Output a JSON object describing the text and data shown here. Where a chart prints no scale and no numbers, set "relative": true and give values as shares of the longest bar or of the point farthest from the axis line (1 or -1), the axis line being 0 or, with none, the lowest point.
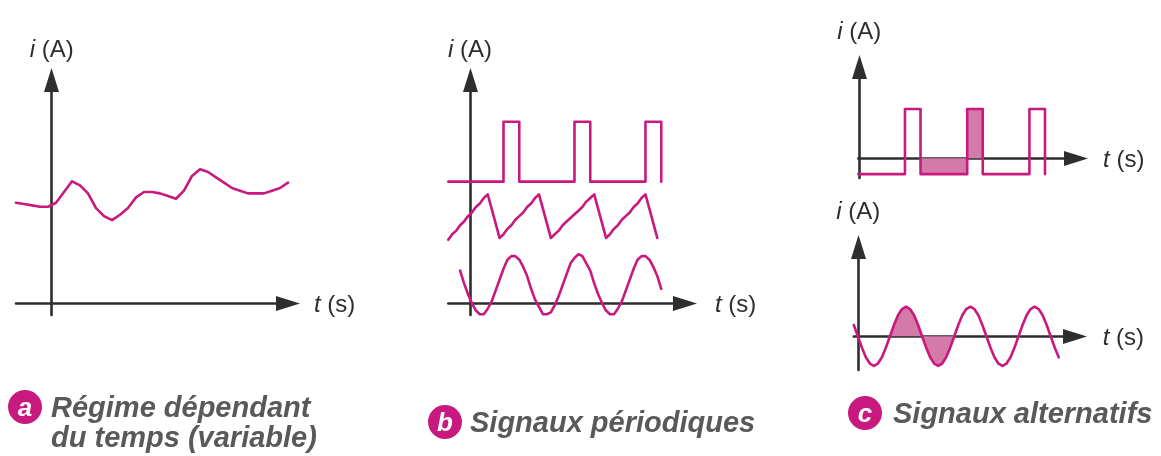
{
  "chart_data": [
    {
      "type": "line",
      "title": "Régime dépendant du temps (variable)",
      "annotations": [
        "a"
      ],
      "xlabel": "t (s)",
      "ylabel": "i (A)",
      "relative": true,
      "color": "#c8197f",
      "categories": [
        null,
        null,
        null,
        null,
        null,
        null,
        null,
        null,
        null,
        null,
        null,
        null,
        null,
        null,
        null,
        null,
        null,
        null,
        null,
        null,
        null,
        null,
        null,
        null,
        null,
        null,
        null,
        null,
        null,
        null,
        null,
        null,
        null,
        null,
        null
      ],
      "values": [
        0.75,
        0.74,
        0.73,
        0.72,
        0.72,
        0.75,
        0.83,
        0.91,
        0.88,
        0.82,
        0.71,
        0.65,
        0.62,
        0.66,
        0.71,
        0.79,
        0.83,
        0.83,
        0.82,
        0.8,
        0.78,
        0.84,
        0.95,
        1,
        0.98,
        0.94,
        0.9,
        0.86,
        0.84,
        0.82,
        0.82,
        0.82,
        0.84,
        0.86,
        0.9
      ]
    },
    {
      "type": "line",
      "title": "Signaux périodiques",
      "annotations": [
        "b"
      ],
      "xlabel": "t (s)",
      "ylabel": "i (A)",
      "relative": true,
      "categories": [
        null,
        null,
        null,
        null,
        null,
        null,
        null,
        null,
        null,
        null,
        null,
        null,
        null,
        null,
        null,
        null,
        null,
        null,
        null,
        null,
        null,
        null,
        null,
        null,
        null,
        null,
        null,
        null,
        null,
        null,
        null,
        null,
        null,
        null,
        null,
        null,
        null,
        null,
        null,
        null,
        null,
        null,
        null,
        null,
        null,
        null,
        null,
        null,
        null,
        null,
        null,
        null,
        null,
        null,
        null,
        null,
        null,
        null,
        null,
        null,
        null
      ],
      "series": [
        {
          "type": "step",
          "color": "#c8197f",
          "values": [
            0.67,
            0.67,
            0.67,
            0.67,
            0.67,
            0.67,
            0.67,
            0.67,
            0.67,
            0.67,
            0.67,
            0.67,
            0.67,
            0.67,
            1,
            1,
            1,
            1,
            0.67,
            0.67,
            0.67,
            0.67,
            0.67,
            0.67,
            0.67,
            0.67,
            0.67,
            0.67,
            0.67,
            0.67,
            0.67,
            0.67,
            1,
            1,
            1,
            1,
            0.67,
            0.67,
            0.67,
            0.67,
            0.67,
            0.67,
            0.67,
            0.67,
            0.67,
            0.67,
            0.67,
            0.67,
            0.67,
            0.67,
            1,
            1,
            1,
            1,
            0.67,
            null,
            null,
            null,
            null,
            null,
            null
          ]
        },
        {
          "color": "#c8197f",
          "values": [
            0.35,
            0.38,
            0.4,
            0.43,
            0.45,
            0.48,
            0.5,
            0.53,
            0.55,
            0.58,
            0.6,
            0.52,
            0.44,
            0.36,
            0.38,
            0.41,
            0.43,
            0.46,
            0.48,
            0.5,
            0.53,
            0.55,
            0.58,
            0.6,
            0.52,
            0.44,
            0.36,
            0.38,
            0.4,
            0.43,
            0.45,
            0.47,
            0.49,
            0.51,
            0.53,
            0.56,
            0.58,
            0.6,
            0.52,
            0.44,
            0.36,
            0.38,
            0.41,
            0.43,
            0.46,
            0.48,
            0.5,
            0.53,
            0.55,
            0.58,
            0.6,
            0.52,
            0.44,
            0.36,
            null,
            null,
            null,
            null,
            null,
            null,
            null
          ]
        },
        {
          "color": "#c8197f",
          "values": [
            null,
            null,
            null,
            0.18,
            0.11,
            0.05,
            0,
            -0.04,
            -0.06,
            -0.06,
            -0.03,
            0.01,
            0.07,
            0.13,
            0.19,
            0.24,
            0.26,
            0.26,
            0.24,
            0.2,
            0.15,
            0.08,
            0.02,
            -0.02,
            -0.06,
            -0.06,
            -0.05,
            -0.01,
            0.04,
            0.1,
            0.16,
            0.22,
            0.25,
            0.27,
            0.26,
            0.22,
            0.18,
            0.11,
            0.05,
            0,
            -0.04,
            -0.06,
            -0.06,
            -0.03,
            0.01,
            0.07,
            0.13,
            0.19,
            0.24,
            0.26,
            0.26,
            0.24,
            0.2,
            0.15,
            0.08,
            null,
            null,
            null,
            null,
            null,
            null
          ]
        }
      ]
    },
    {
      "type": "step",
      "xlabel": "t (s)",
      "ylabel": "i (A)",
      "relative": true,
      "categories": [
        null,
        null,
        null,
        null,
        null,
        null,
        null,
        null,
        null,
        null,
        null,
        null,
        null,
        null,
        null,
        null,
        null,
        null,
        null,
        null,
        null,
        null,
        null,
        null,
        null,
        null,
        null,
        null,
        null,
        null,
        null,
        null,
        null,
        null,
        null,
        null,
        null,
        null,
        null,
        null,
        null,
        null,
        null,
        null,
        null,
        null,
        null,
        null,
        null,
        null,
        null,
        null,
        null,
        null,
        null,
        null,
        null
      ],
      "series": [
        {
          "color": "#c8197f",
          "values": [
            -0.32,
            -0.32,
            -0.32,
            -0.32,
            -0.32,
            -0.32,
            -0.32,
            -0.32,
            -0.32,
            -0.32,
            -0.32,
            -0.32,
            1,
            1,
            1,
            1,
            -0.32,
            -0.32,
            -0.32,
            -0.32,
            -0.32,
            -0.32,
            -0.32,
            -0.32,
            -0.32,
            -0.32,
            -0.32,
            -0.32,
            1,
            1,
            1,
            1,
            -0.32,
            -0.32,
            -0.32,
            -0.32,
            -0.32,
            -0.32,
            -0.32,
            -0.32,
            -0.32,
            -0.32,
            -0.32,
            -0.32,
            1,
            1,
            1,
            1,
            -0.32,
            null,
            null,
            null,
            null,
            null,
            null,
            null,
            null
          ]
        },
        {
          "type": "area",
          "color": "#d47aa8",
          "values": [
            null,
            null,
            null,
            null,
            null,
            null,
            null,
            null,
            null,
            null,
            null,
            null,
            null,
            null,
            null,
            null,
            -0.32,
            -0.32,
            -0.32,
            -0.32,
            -0.32,
            -0.32,
            -0.32,
            -0.32,
            -0.32,
            -0.32,
            -0.32,
            -0.32,
            -0.32,
            null,
            null,
            null,
            null,
            null,
            null,
            null,
            null,
            null,
            null,
            null,
            null,
            null,
            null,
            null,
            null,
            null,
            null,
            null,
            null,
            null,
            null,
            null,
            null,
            null,
            null,
            null,
            null
          ]
        },
        {
          "type": "area",
          "color": "#d47aa8",
          "values": [
            null,
            null,
            null,
            null,
            null,
            null,
            null,
            null,
            null,
            null,
            null,
            null,
            null,
            null,
            null,
            null,
            null,
            null,
            null,
            null,
            null,
            null,
            null,
            null,
            null,
            null,
            null,
            null,
            1,
            1,
            1,
            1,
            1,
            null,
            null,
            null,
            null,
            null,
            null,
            null,
            null,
            null,
            null,
            null,
            null,
            null,
            null,
            null,
            null,
            null,
            null,
            null,
            null,
            null,
            null,
            null,
            null
          ]
        }
      ]
    },
    {
      "type": "line",
      "title": "Signaux alternatifs",
      "annotations": [
        "c"
      ],
      "xlabel": "t (s)",
      "ylabel": "i (A)",
      "relative": true,
      "categories": [
        null,
        null,
        null,
        null,
        null,
        null,
        null,
        null,
        null,
        null,
        null,
        null,
        null,
        null,
        null,
        null,
        null,
        null,
        null,
        null,
        null,
        null,
        null,
        null,
        null,
        null,
        null,
        null,
        null,
        null,
        null,
        null,
        null,
        null,
        null,
        null,
        null,
        null,
        null,
        null,
        null,
        null,
        null,
        null,
        null,
        null,
        null,
        null,
        null,
        null,
        null,
        null,
        null,
        null,
        null,
        null
      ],
      "series": [
        {
          "color": "#c8197f",
          "values": [
            0.38,
            0,
            -0.38,
            -0.71,
            -0.92,
            -1,
            -0.92,
            -0.71,
            -0.38,
            0,
            0.38,
            0.71,
            0.92,
            1,
            0.92,
            0.71,
            0.38,
            0,
            -0.38,
            -0.71,
            -0.92,
            -1,
            -0.92,
            -0.71,
            -0.38,
            0,
            0.38,
            0.71,
            0.92,
            1,
            0.92,
            0.71,
            0.38,
            0,
            -0.38,
            -0.71,
            -0.92,
            -1,
            -0.92,
            -0.71,
            -0.38,
            0,
            0.38,
            0.71,
            0.92,
            1,
            0.92,
            0.71,
            0.38,
            0,
            -0.38,
            -0.71,
            null,
            null,
            null,
            null
          ]
        },
        {
          "type": "area",
          "color": "#d47aa8",
          "values": [
            null,
            null,
            null,
            null,
            null,
            null,
            null,
            null,
            null,
            0,
            0.38,
            0.71,
            0.92,
            1,
            0.92,
            0.71,
            0.38,
            0,
            null,
            null,
            null,
            null,
            null,
            null,
            null,
            null,
            null,
            null,
            null,
            null,
            null,
            null,
            null,
            null,
            null,
            null,
            null,
            null,
            null,
            null,
            null,
            null,
            null,
            null,
            null,
            null,
            null,
            null,
            null,
            null,
            null,
            null,
            null,
            null,
            null,
            null
          ]
        },
        {
          "type": "area",
          "color": "#d47aa8",
          "values": [
            null,
            null,
            null,
            null,
            null,
            null,
            null,
            null,
            null,
            null,
            null,
            null,
            null,
            null,
            null,
            null,
            null,
            0,
            -0.38,
            -0.71,
            -0.92,
            -1,
            -0.92,
            -0.71,
            -0.38,
            0,
            null,
            null,
            null,
            null,
            null,
            null,
            null,
            null,
            null,
            null,
            null,
            null,
            null,
            null,
            null,
            null,
            null,
            null,
            null,
            null,
            null,
            null,
            null,
            null,
            null,
            null,
            null,
            null,
            null,
            null
          ]
        }
      ]
    }
  ]
}
